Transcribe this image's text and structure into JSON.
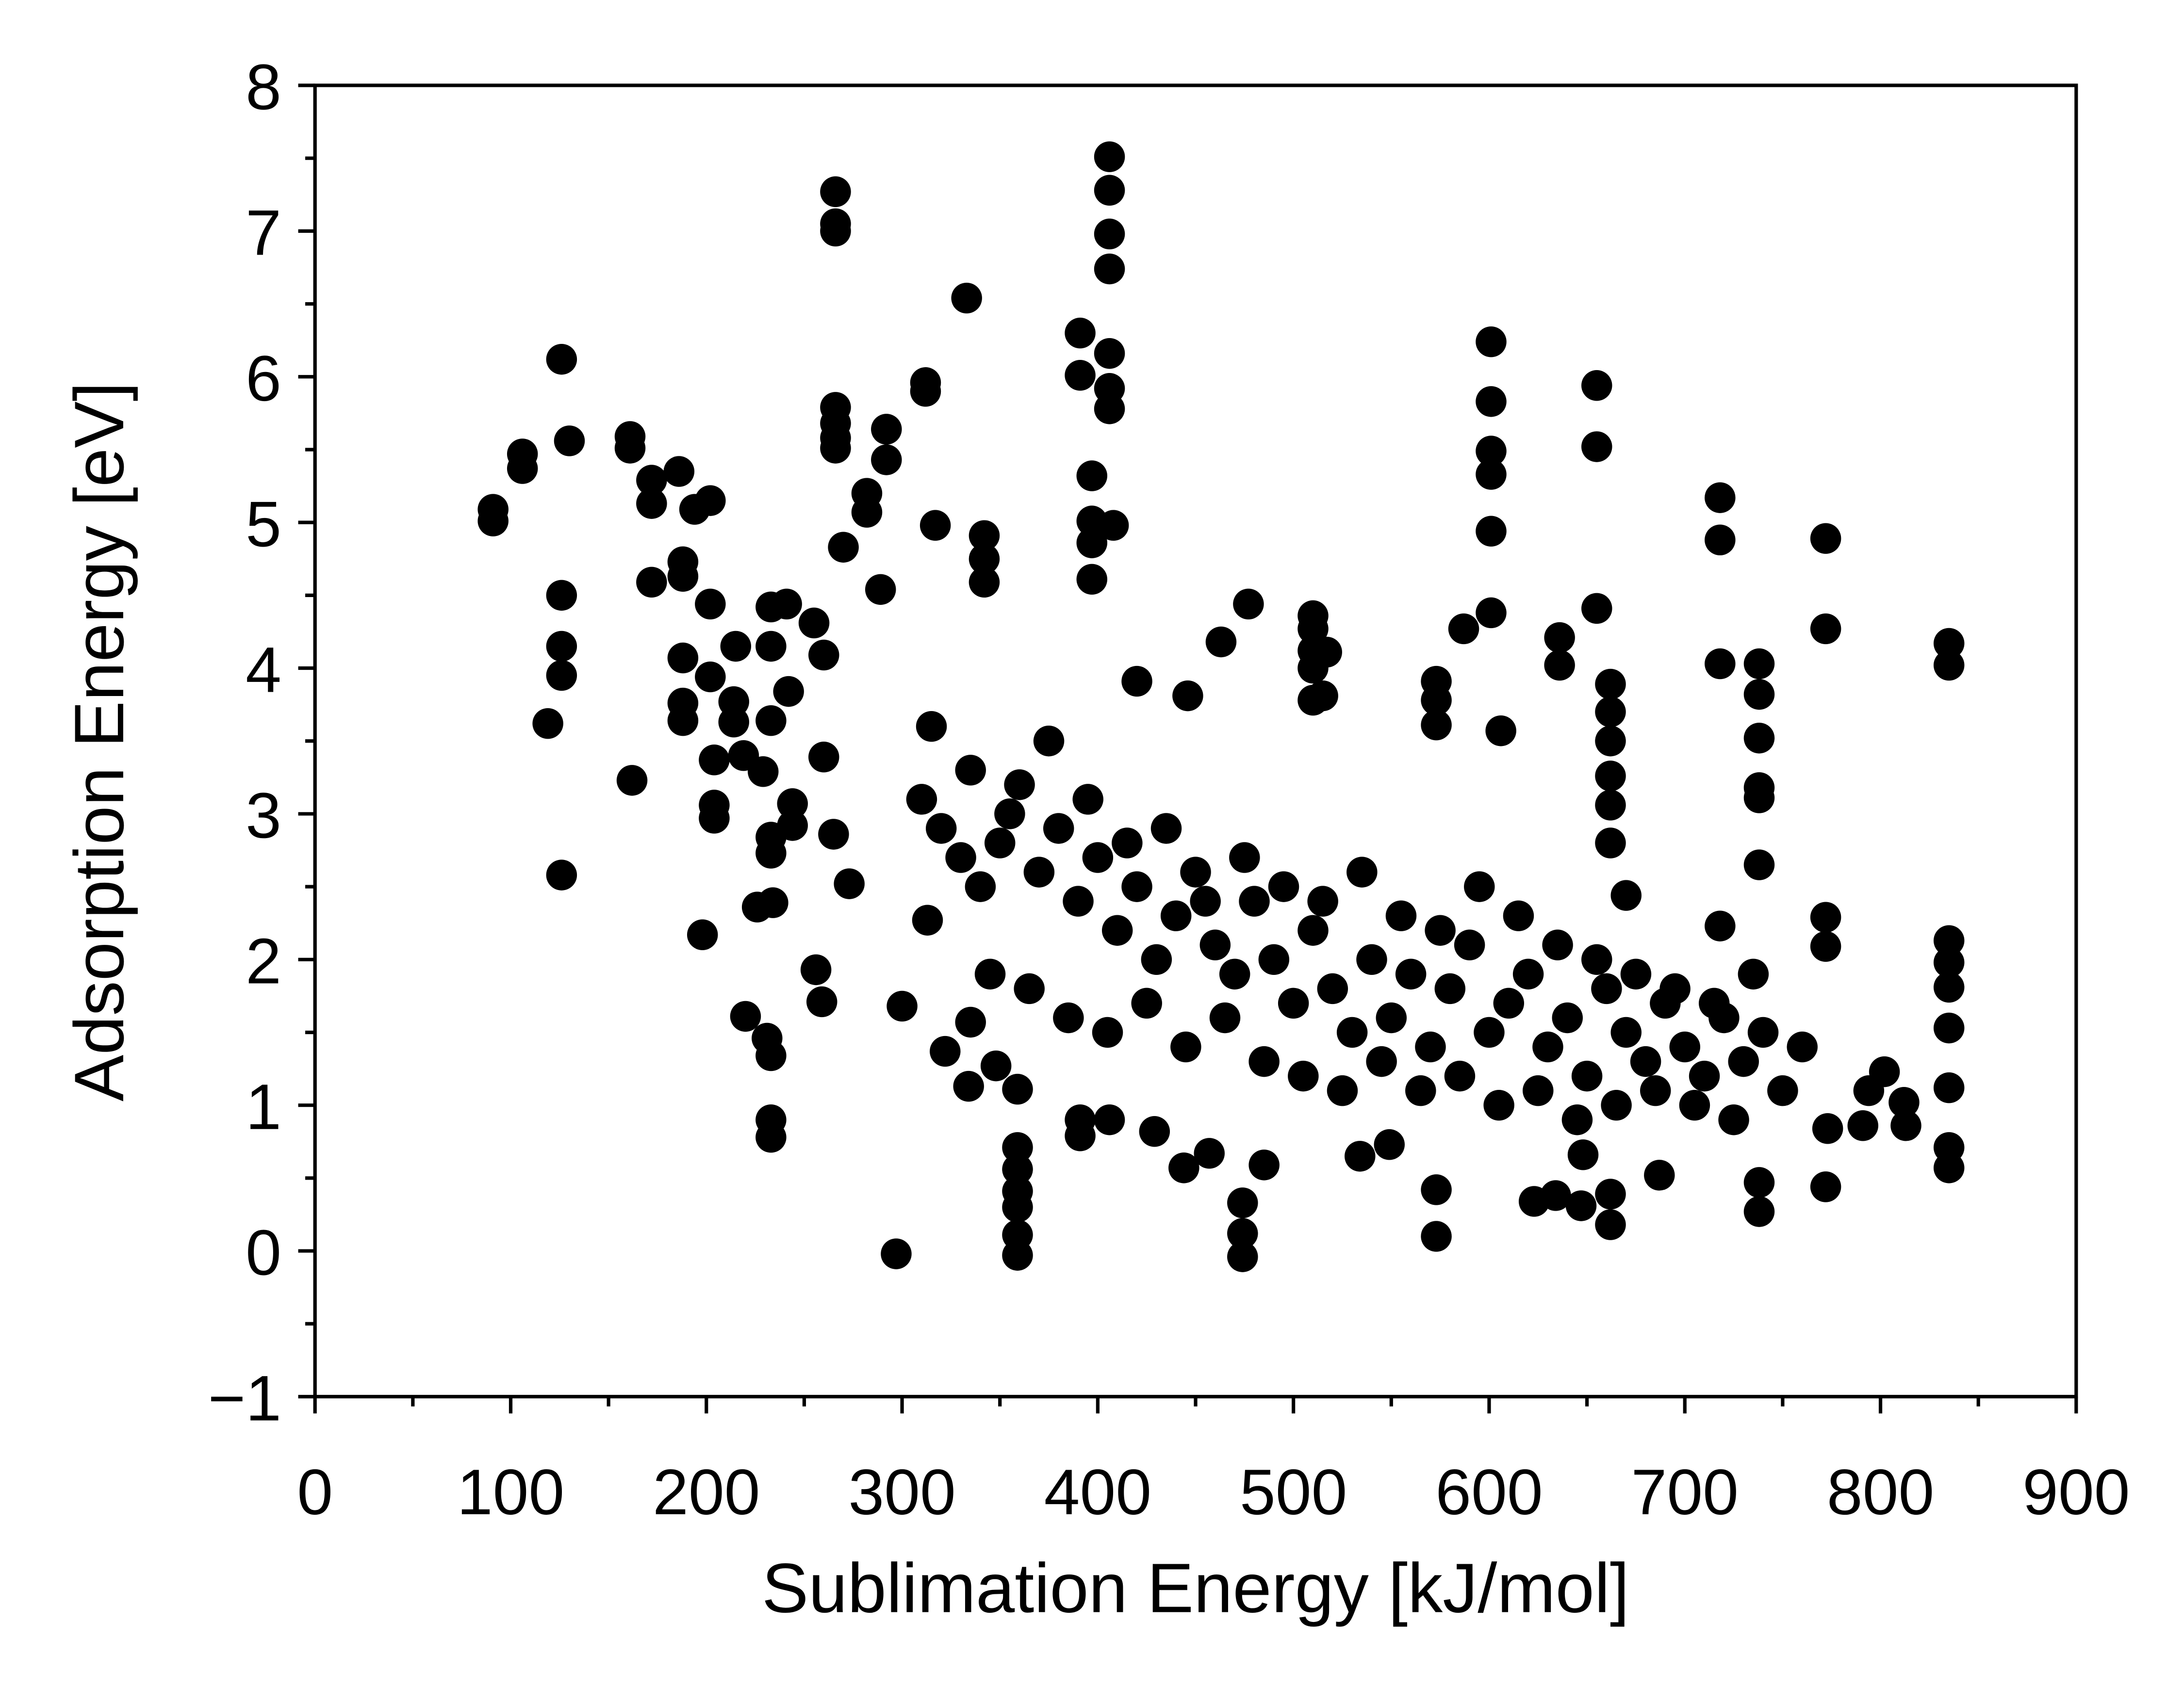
{
  "chart_data": {
    "type": "scatter",
    "x_label": "Sublimation Energy [kJ/mol]",
    "y_label": "Adsorption Energy [eV]",
    "color": "#000000",
    "xlim": [
      0,
      900
    ],
    "ylim": [
      -1,
      8
    ],
    "xticks": [
      0,
      100,
      200,
      300,
      400,
      500,
      600,
      700,
      800,
      900
    ],
    "yticks": [
      {
        "value": -1,
        "label": "−1"
      },
      0,
      1,
      2,
      3,
      4,
      5,
      6,
      7,
      8
    ],
    "x_minor_ticks": [
      50,
      150,
      250,
      350,
      450,
      550,
      650,
      750,
      850
    ],
    "y_minor_ticks": [
      -0.5,
      0.5,
      1.5,
      2.5,
      3.5,
      4.5,
      5.5,
      6.5,
      7.5
    ],
    "x": [
      91,
      91,
      106,
      106,
      126,
      130,
      126,
      126,
      126,
      119,
      126,
      161,
      161,
      162,
      172,
      172,
      172,
      186,
      194,
      202,
      188,
      188,
      188,
      188,
      188,
      202,
      202,
      204,
      204,
      204,
      198,
      215,
      214,
      214,
      219,
      220,
      229,
      226,
      233,
      233,
      233,
      233,
      233,
      234,
      231,
      233,
      233,
      233,
      241,
      242,
      244,
      244,
      255,
      256,
      259,
      260,
      260,
      265,
      266,
      266,
      266,
      266,
      266,
      266,
      266,
      270,
      273,
      282,
      282,
      289,
      292,
      292,
      297,
      300,
      312,
      312,
      313,
      317,
      333,
      342,
      342,
      342,
      334,
      322,
      335,
      348,
      359,
      359,
      359,
      359,
      359,
      359,
      359,
      391,
      391,
      397,
      397,
      397,
      397,
      406,
      406,
      406,
      406,
      406,
      406,
      406,
      408,
      391,
      391,
      406,
      429,
      444,
      457,
      474,
      474,
      474,
      485,
      477,
      463,
      446,
      420,
      510,
      510,
      510,
      510,
      510,
      517,
      515,
      534,
      549,
      573,
      573,
      573,
      587,
      573,
      573,
      601,
      601,
      601,
      601,
      601,
      601,
      606,
      623,
      634,
      636,
      636,
      648,
      647,
      655,
      655,
      655,
      662,
      662,
      662,
      662,
      662,
      662,
      662,
      662,
      670,
      687,
      718,
      718,
      718,
      718,
      738,
      738,
      738,
      738,
      738,
      738,
      738,
      738,
      772,
      772,
      772,
      772,
      772,
      835,
      835,
      835,
      835,
      835,
      835,
      835,
      835,
      835,
      802,
      794,
      812,
      813,
      791,
      773,
      310,
      320,
      330,
      340,
      350,
      360,
      370,
      380,
      390,
      400,
      410,
      420,
      430,
      440,
      450,
      460,
      470,
      480,
      490,
      500,
      510,
      520,
      530,
      540,
      550,
      560,
      570,
      580,
      590,
      600,
      610,
      620,
      630,
      640,
      650,
      660,
      670,
      680,
      690,
      700,
      710,
      720,
      730,
      740,
      750,
      760,
      315,
      335,
      355,
      375,
      395,
      415,
      435,
      455,
      475,
      495,
      515,
      535,
      555,
      575,
      595,
      615,
      635,
      655,
      675,
      695,
      715,
      735,
      345,
      365,
      385,
      405,
      425,
      445,
      465,
      485,
      505,
      525,
      545,
      565,
      585,
      605,
      625,
      645,
      665,
      685,
      705,
      725
    ],
    "values": [
      5.01,
      5.09,
      5.47,
      5.37,
      6.12,
      5.56,
      4.5,
      4.15,
      3.95,
      3.62,
      2.58,
      5.59,
      5.51,
      3.23,
      5.29,
      5.13,
      4.59,
      5.35,
      5.09,
      5.15,
      4.73,
      4.63,
      4.07,
      3.76,
      3.64,
      4.44,
      3.94,
      3.37,
      3.06,
      2.97,
      2.17,
      4.15,
      3.77,
      3.63,
      3.4,
      1.61,
      3.29,
      2.36,
      4.42,
      4.15,
      3.64,
      2.84,
      2.73,
      2.39,
      1.46,
      1.34,
      0.9,
      0.78,
      4.44,
      3.84,
      3.07,
      2.92,
      4.31,
      1.93,
      1.71,
      4.09,
      3.39,
      2.86,
      7.27,
      7.05,
      7.0,
      5.79,
      5.68,
      5.58,
      5.51,
      4.83,
      2.52,
      5.2,
      5.07,
      4.54,
      5.64,
      5.43,
      -0.02,
      1.68,
      5.96,
      5.9,
      2.27,
      4.98,
      6.54,
      4.91,
      4.75,
      4.59,
      1.13,
      1.37,
      1.57,
      1.27,
      1.11,
      0.71,
      0.56,
      0.41,
      0.3,
      0.11,
      -0.03,
      6.3,
      6.01,
      5.32,
      5.01,
      4.86,
      4.61,
      7.51,
      7.28,
      6.98,
      6.74,
      6.16,
      5.92,
      5.78,
      4.98,
      0.9,
      0.79,
      0.9,
      0.82,
      0.57,
      0.67,
      0.33,
      0.12,
      -0.04,
      0.59,
      4.44,
      4.18,
      3.81,
      3.91,
      4.36,
      4.27,
      4.12,
      4.0,
      3.78,
      4.11,
      3.81,
      0.65,
      0.73,
      3.91,
      3.78,
      3.61,
      4.27,
      0.42,
      0.1,
      6.24,
      5.83,
      5.49,
      5.33,
      4.94,
      4.38,
      3.57,
      0.34,
      0.38,
      4.21,
      4.02,
      0.66,
      0.31,
      5.94,
      5.52,
      4.41,
      3.89,
      3.7,
      3.5,
      3.26,
      3.06,
      2.8,
      0.39,
      0.18,
      2.44,
      0.52,
      5.17,
      4.88,
      4.03,
      2.23,
      4.03,
      3.82,
      3.52,
      3.18,
      3.11,
      2.65,
      0.47,
      0.27,
      4.89,
      4.27,
      2.29,
      2.09,
      0.44,
      4.17,
      4.02,
      2.13,
      1.98,
      1.81,
      1.53,
      1.12,
      0.71,
      0.57,
      1.23,
      1.1,
      1.02,
      0.86,
      0.86,
      0.84,
      3.1,
      2.9,
      2.7,
      2.5,
      2.8,
      3.2,
      2.6,
      2.9,
      2.4,
      2.7,
      2.2,
      2.5,
      2.0,
      2.3,
      2.6,
      2.1,
      1.9,
      2.4,
      2.0,
      1.7,
      2.2,
      1.8,
      1.5,
      2.0,
      1.6,
      1.9,
      1.4,
      1.8,
      2.1,
      1.5,
      1.7,
      1.9,
      1.4,
      1.6,
      1.2,
      1.8,
      1.5,
      1.3,
      1.7,
      1.4,
      1.2,
      1.6,
      1.3,
      1.5,
      1.1,
      1.4,
      3.6,
      3.3,
      3.0,
      3.5,
      3.1,
      2.8,
      2.9,
      2.4,
      2.7,
      2.5,
      2.4,
      2.6,
      2.3,
      2.2,
      2.5,
      2.3,
      2.1,
      2.0,
      1.9,
      1.8,
      1.7,
      1.9,
      1.9,
      1.8,
      1.6,
      1.5,
      1.7,
      1.4,
      1.6,
      1.3,
      1.2,
      1.1,
      1.3,
      1.1,
      1.2,
      1.0,
      1.1,
      0.9,
      1.0,
      1.1,
      1.0,
      0.9
    ]
  }
}
